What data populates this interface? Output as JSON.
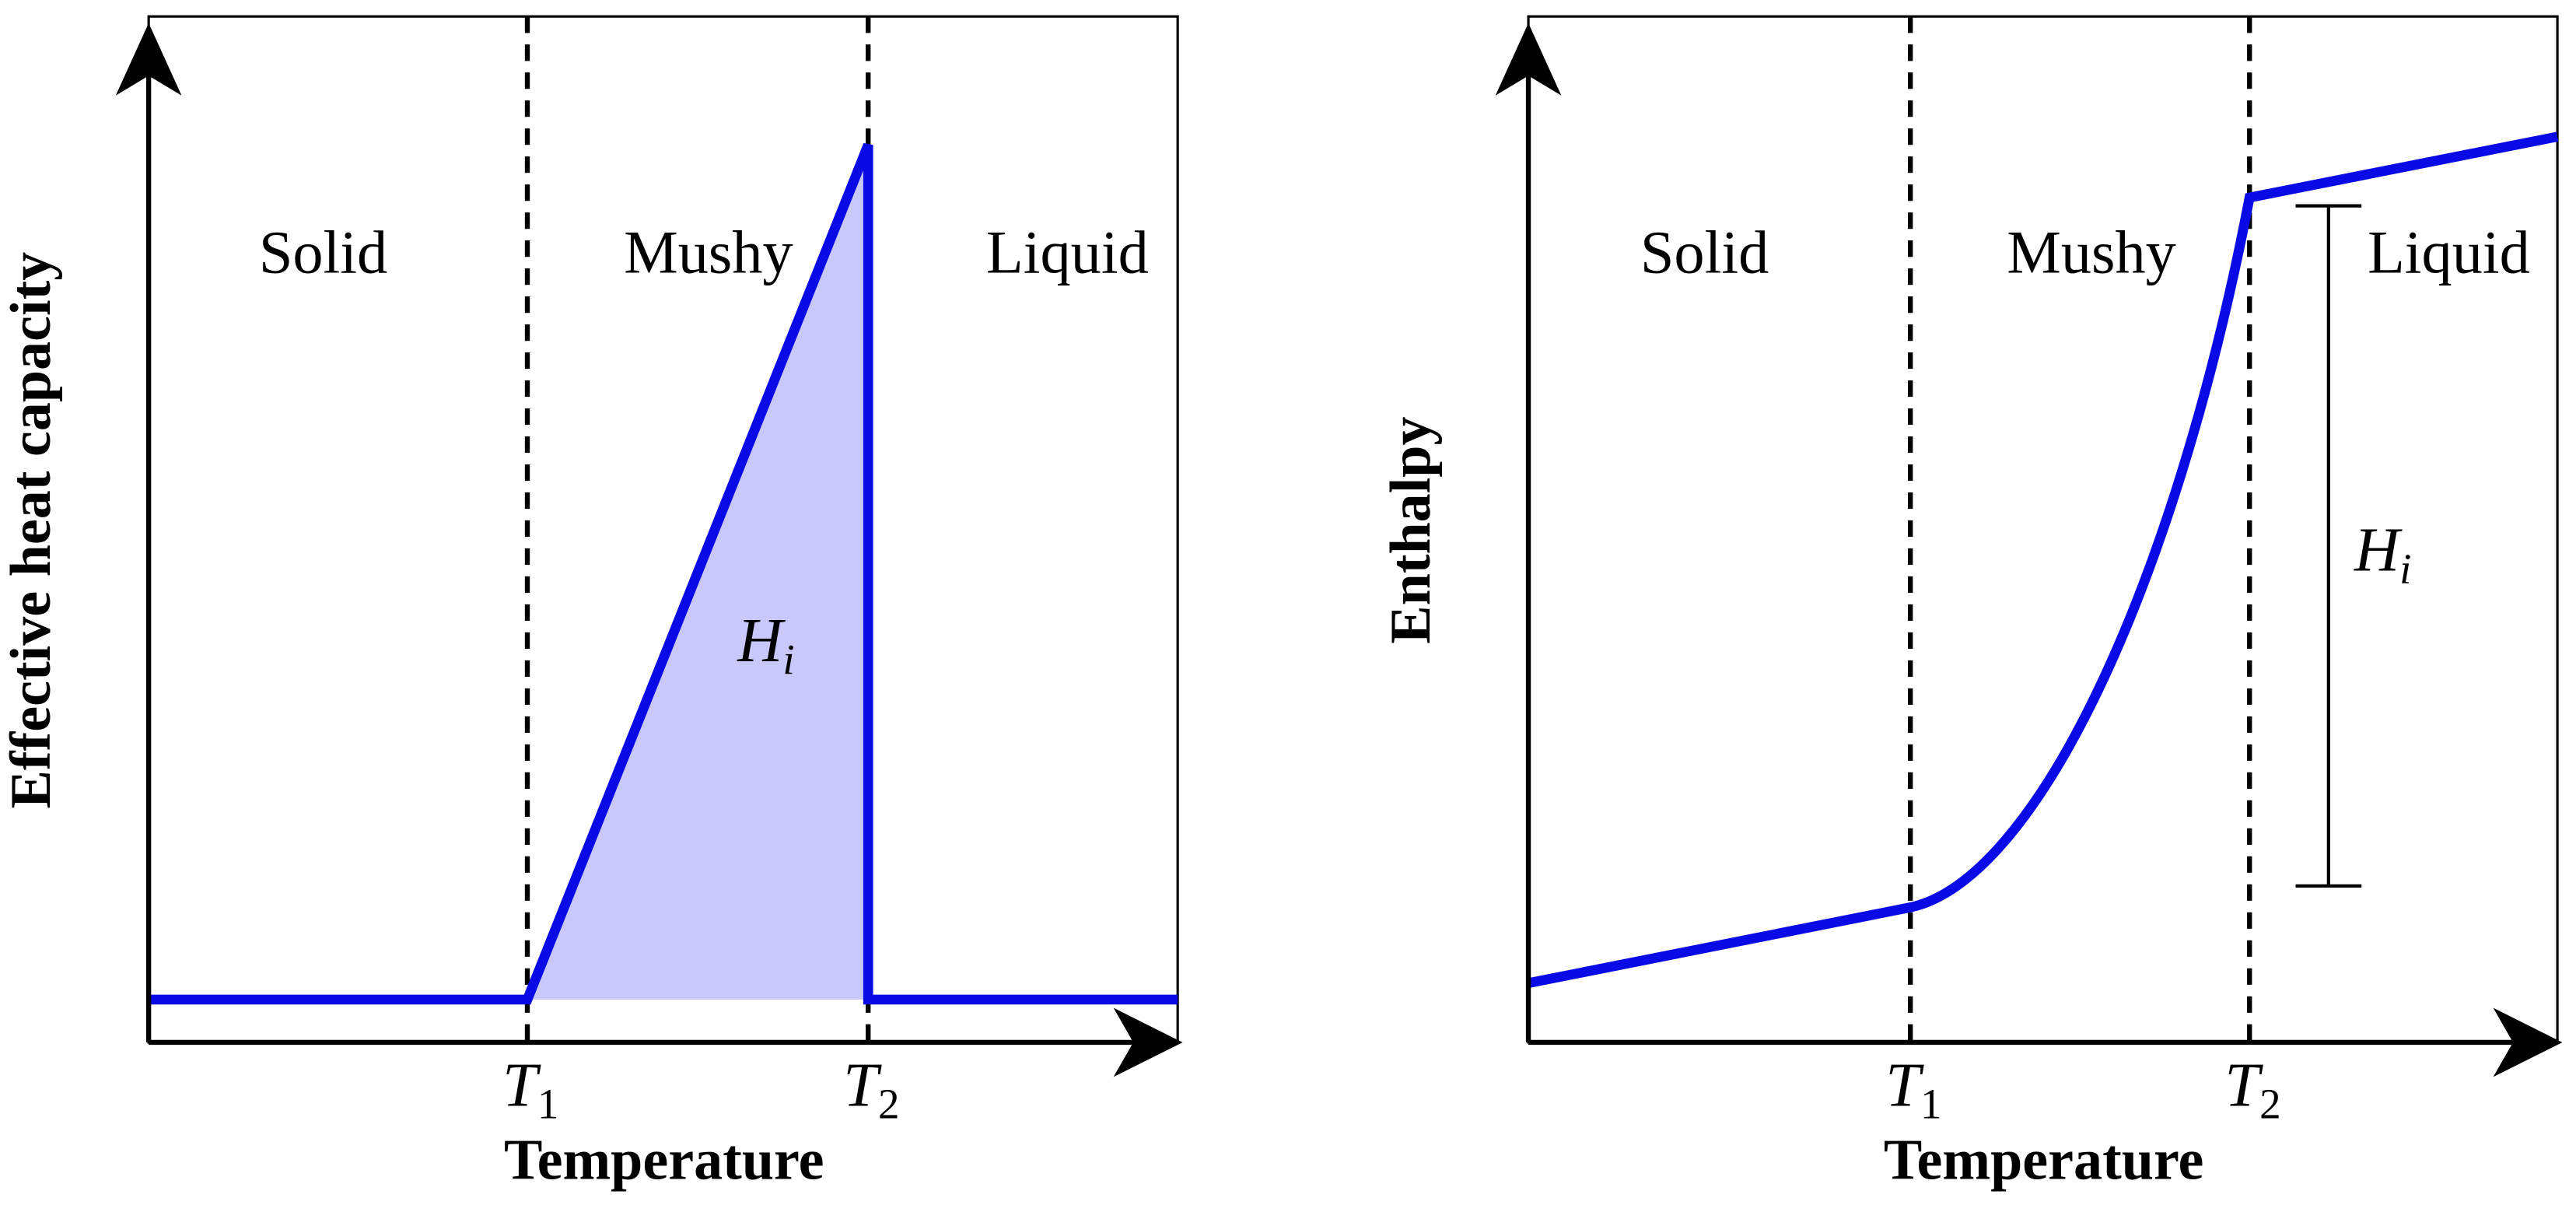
{
  "panels": [
    {
      "y_label": "Effective heat capacity",
      "x_label": "Temperature",
      "regions": [
        "Solid",
        "Mushy",
        "Liquid"
      ],
      "ticks": [
        {
          "main": "T",
          "sub": "1"
        },
        {
          "main": "T",
          "sub": "2"
        }
      ],
      "annotation": {
        "main": "H",
        "sub": "i"
      }
    },
    {
      "y_label": "Enthalpy",
      "x_label": "Temperature",
      "regions": [
        "Solid",
        "Mushy",
        "Liquid"
      ],
      "ticks": [
        {
          "main": "T",
          "sub": "1"
        },
        {
          "main": "T",
          "sub": "2"
        }
      ],
      "annotation": {
        "main": "H",
        "sub": "i"
      }
    }
  ]
}
